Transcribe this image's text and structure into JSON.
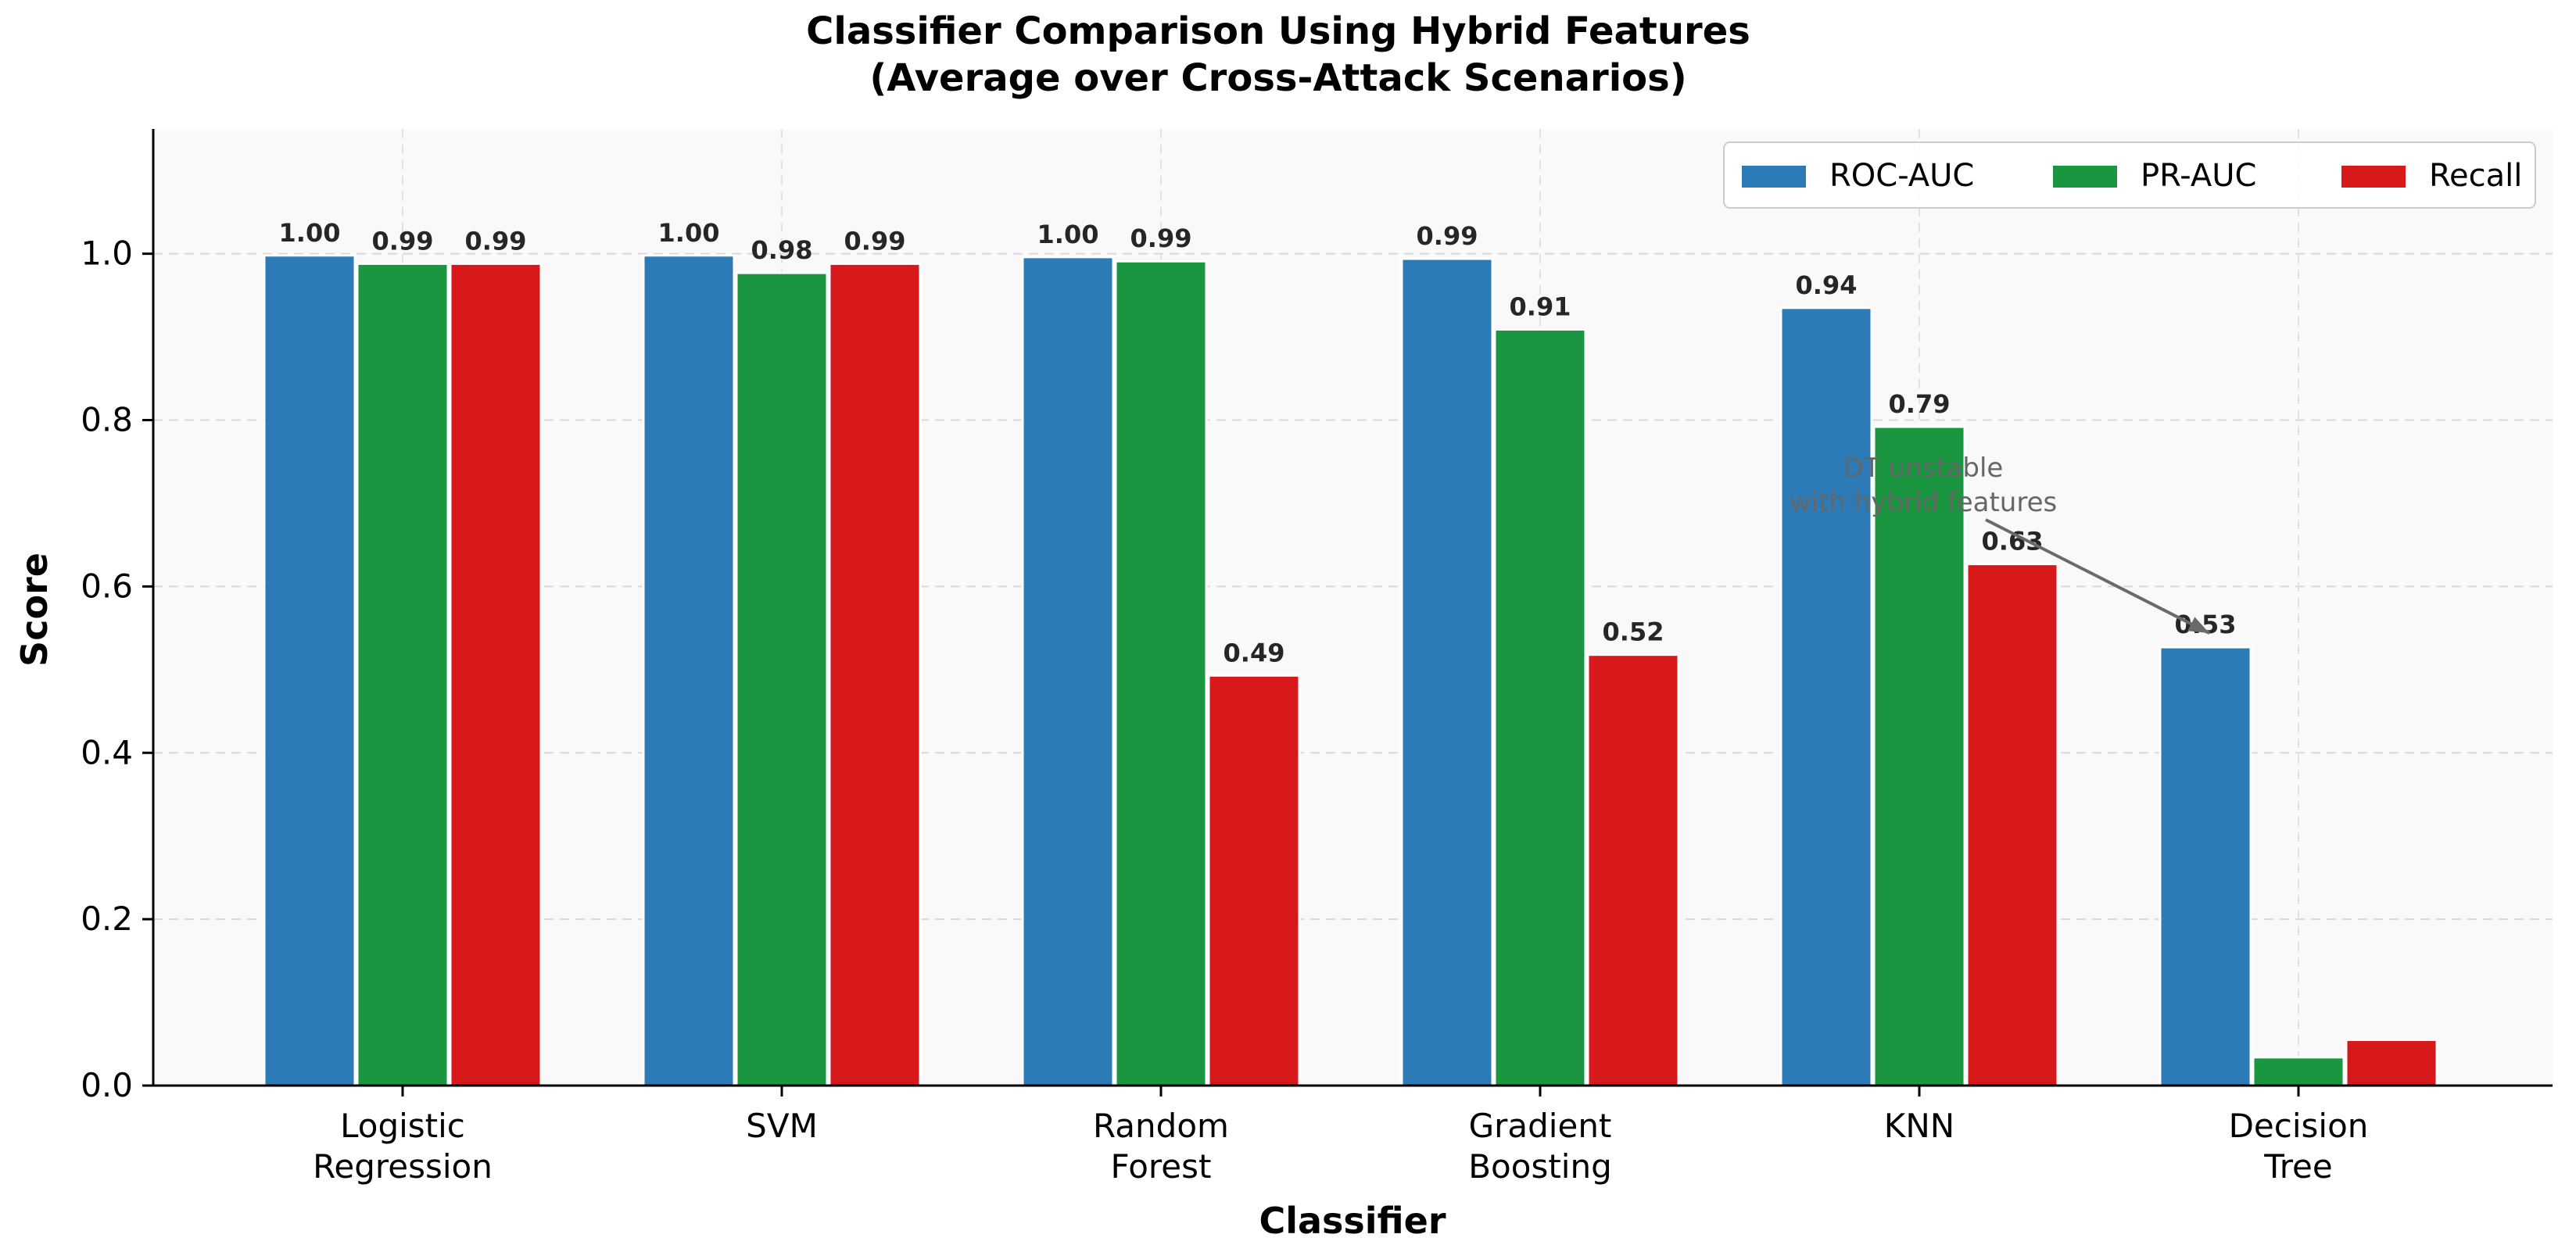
{
  "chart_data": {
    "type": "bar",
    "title_lines": [
      "Classifier Comparison Using Hybrid Features",
      "(Average over Cross-Attack Scenarios)"
    ],
    "xlabel": "Classifier",
    "ylabel": "Score",
    "ylim": [
      0,
      1.15
    ],
    "yticks": [
      "0.0",
      "0.2",
      "0.4",
      "0.6",
      "0.8",
      "1.0"
    ],
    "grid": true,
    "legend_position": "top-right",
    "categories": [
      [
        "Logistic",
        "Regression"
      ],
      [
        "SVM"
      ],
      [
        "Random",
        "Forest"
      ],
      [
        "Gradient",
        "Boosting"
      ],
      [
        "KNN"
      ],
      [
        "Decision",
        "Tree"
      ]
    ],
    "series": [
      {
        "name": "ROC-AUC",
        "color": "#2c7bb6",
        "values": [
          0.998,
          0.998,
          0.996,
          0.994,
          0.935,
          0.527
        ]
      },
      {
        "name": "PR-AUC",
        "color": "#1a9641",
        "values": [
          0.988,
          0.977,
          0.991,
          0.909,
          0.792,
          0.034
        ]
      },
      {
        "name": "Recall",
        "color": "#d7191c",
        "values": [
          0.988,
          0.988,
          0.493,
          0.518,
          0.627,
          0.055
        ]
      }
    ],
    "data_labels": [
      [
        "1.00",
        "1.00",
        "1.00",
        "0.99",
        "0.94",
        "0.53"
      ],
      [
        "0.99",
        "0.98",
        "0.99",
        "0.91",
        "0.79",
        ""
      ],
      [
        "0.99",
        "0.99",
        "0.49",
        "0.52",
        "0.63",
        ""
      ]
    ],
    "annotation": {
      "lines": [
        "DT unstable",
        "with hybrid features"
      ],
      "target_category": 5,
      "target_series": 0
    }
  }
}
